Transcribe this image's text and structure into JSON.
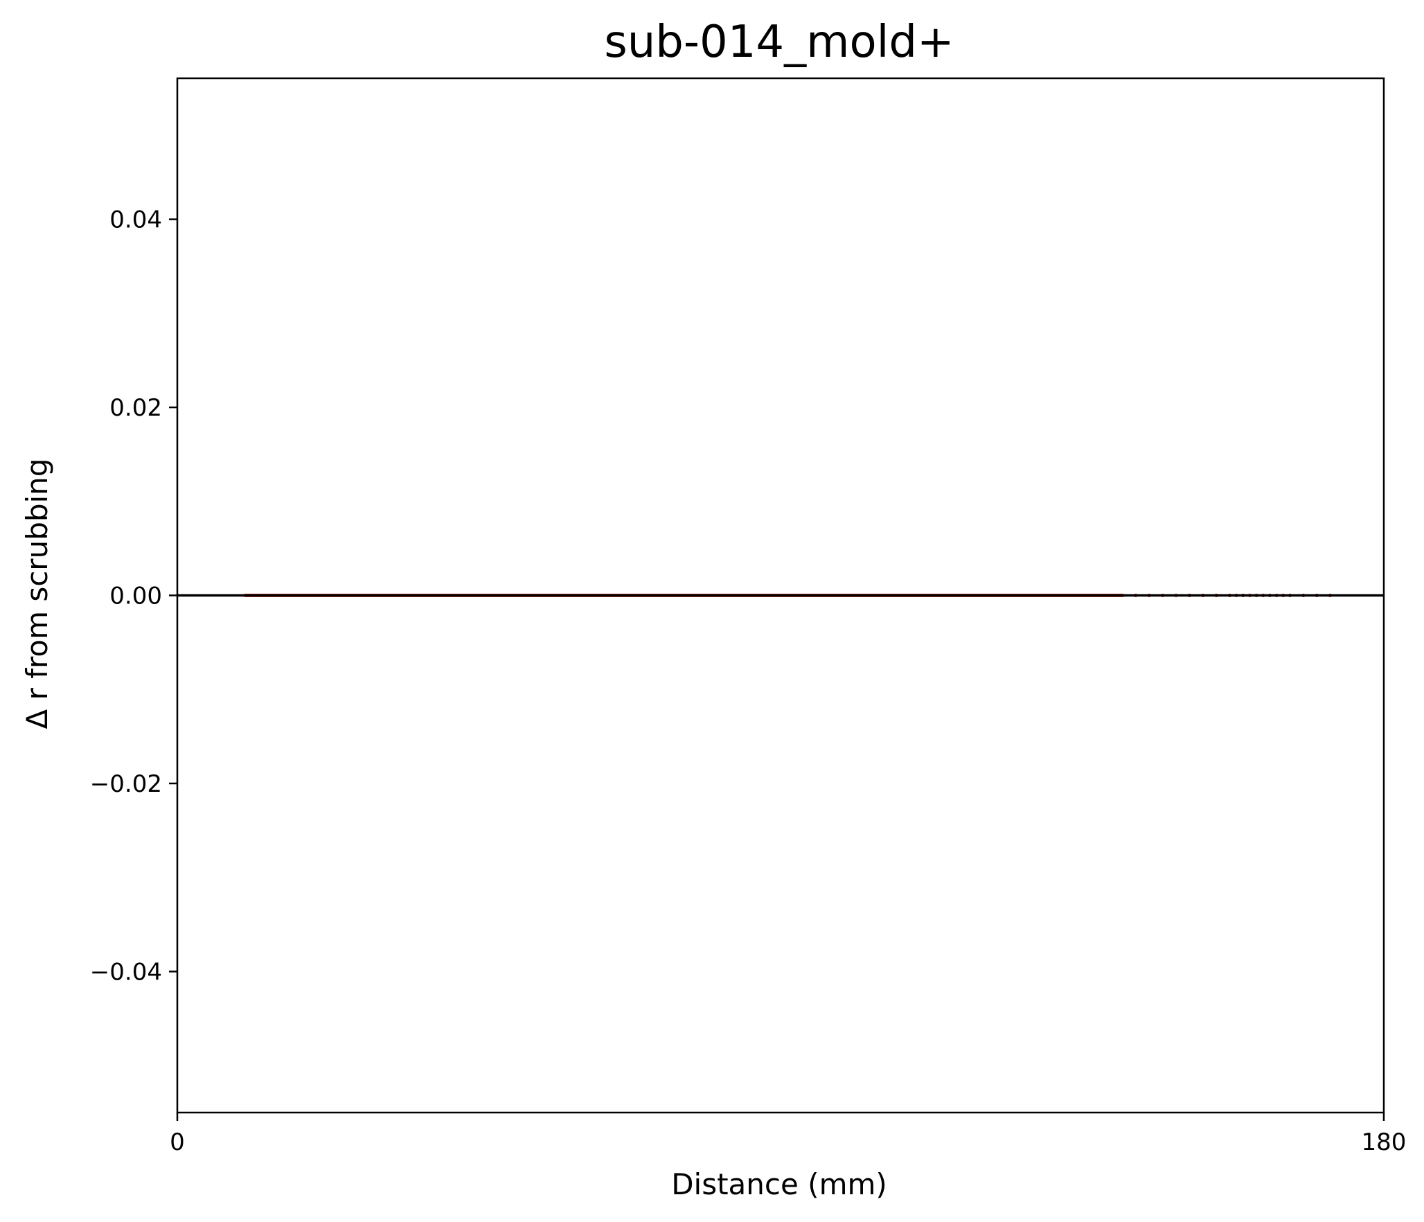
{
  "chart_data": {
    "type": "scatter",
    "title": "sub-014_mold+",
    "xlabel": "Distance (mm)",
    "ylabel": "Δ r from scrubbing",
    "xlim": [
      0,
      180
    ],
    "ylim": [
      -0.055,
      0.055
    ],
    "xticks": [
      0,
      180
    ],
    "xtick_labels": [
      "0",
      "180"
    ],
    "yticks": [
      -0.04,
      -0.02,
      0.0,
      0.02,
      0.04
    ],
    "ytick_labels": [
      "−0.04",
      "−0.02",
      "0.00",
      "0.02",
      "0.04"
    ],
    "grid": false,
    "reference_line": {
      "y": 0,
      "color": "#000000"
    },
    "series": [
      {
        "color": "#c0392b",
        "x_range": [
          10,
          172
        ],
        "y": 0,
        "sparse_tail_x": [
          141,
          143,
          145,
          147,
          149,
          151,
          153,
          155,
          157,
          158,
          159,
          160,
          161,
          162,
          163,
          164,
          165,
          166,
          168,
          170,
          172
        ],
        "note_values": "all points at Δr = 0"
      }
    ]
  }
}
